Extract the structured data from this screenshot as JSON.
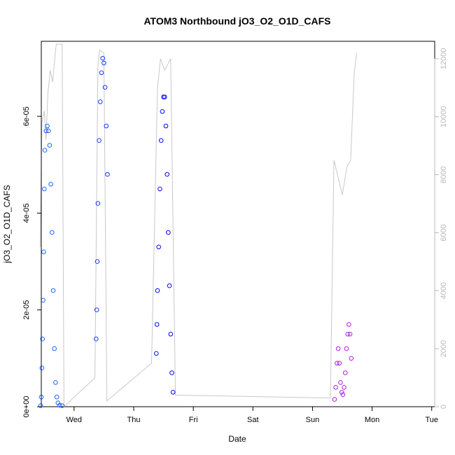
{
  "chart_data": {
    "type": "scatter",
    "title": "ATOM3 Northbound jO3_O2_O1D_CAFS",
    "xlabel": "Date",
    "ylabel": "jO3_O2_O1D_CAFS",
    "x_ticks": [
      "Wed",
      "Thu",
      "Fri",
      "Sat",
      "Sun",
      "Mon",
      "Tue"
    ],
    "y_ticks": [
      "0e+00",
      "2e-05",
      "4e-05",
      "6e-05"
    ],
    "y_tick_values": [
      0,
      2e-05,
      4e-05,
      6e-05
    ],
    "ylim": [
      0,
      7.55e-05
    ],
    "y2_ticks": [
      "0",
      "2000",
      "4000",
      "6000",
      "8000",
      "10000",
      "12000"
    ],
    "y2_tick_values": [
      0,
      2000,
      4000,
      6000,
      8000,
      10000,
      12000
    ],
    "y2lim": [
      0,
      12600
    ],
    "xlim_days": [
      -0.55,
      6.05
    ],
    "grid": false,
    "point_style": "open-circle",
    "point_color_gradient": [
      "#1e6eff",
      "#0000ee",
      "#8a2be2",
      "#ff00ff"
    ],
    "secondary_line_color": "#c8c8c8",
    "series": [
      {
        "segment": 1,
        "day_range": [
          -0.56,
          -0.17
        ],
        "points": [
          [
            -0.56,
            2e-07
          ],
          [
            -0.55,
            2e-06
          ],
          [
            -0.54,
            8e-06
          ],
          [
            -0.53,
            1.4e-05
          ],
          [
            -0.52,
            2.2e-05
          ],
          [
            -0.51,
            3.2e-05
          ],
          [
            -0.5,
            4.5e-05
          ],
          [
            -0.49,
            5.3e-05
          ],
          [
            -0.47,
            5.7e-05
          ],
          [
            -0.45,
            5.8e-05
          ],
          [
            -0.43,
            5.7e-05
          ],
          [
            -0.41,
            5.4e-05
          ],
          [
            -0.39,
            4.6e-05
          ],
          [
            -0.37,
            3.6e-05
          ],
          [
            -0.35,
            2.4e-05
          ],
          [
            -0.33,
            1.2e-05
          ],
          [
            -0.31,
            5e-06
          ],
          [
            -0.29,
            2e-06
          ],
          [
            -0.27,
            8e-07
          ],
          [
            -0.24,
            3e-07
          ],
          [
            -0.2,
            2e-07
          ]
        ]
      },
      {
        "segment": 2,
        "day_range": [
          0.37,
          0.57
        ],
        "points": [
          [
            0.37,
            1.4e-05
          ],
          [
            0.38,
            2e-05
          ],
          [
            0.39,
            3e-05
          ],
          [
            0.4,
            4.2e-05
          ],
          [
            0.42,
            5.5e-05
          ],
          [
            0.44,
            6.3e-05
          ],
          [
            0.46,
            6.9e-05
          ],
          [
            0.48,
            7.2e-05
          ],
          [
            0.5,
            7.1e-05
          ],
          [
            0.52,
            6.6e-05
          ],
          [
            0.54,
            5.8e-05
          ],
          [
            0.56,
            4.8e-05
          ]
        ]
      },
      {
        "segment": 3,
        "day_range": [
          1.38,
          1.7
        ],
        "points": [
          [
            1.38,
            1.1e-05
          ],
          [
            1.39,
            1.7e-05
          ],
          [
            1.4,
            2.4e-05
          ],
          [
            1.42,
            3.3e-05
          ],
          [
            1.44,
            4.5e-05
          ],
          [
            1.46,
            5.5e-05
          ],
          [
            1.48,
            6.1e-05
          ],
          [
            1.5,
            6.4e-05
          ],
          [
            1.52,
            6.4e-05
          ],
          [
            1.54,
            5.8e-05
          ],
          [
            1.56,
            4.8e-05
          ],
          [
            1.58,
            3.6e-05
          ],
          [
            1.6,
            2.5e-05
          ],
          [
            1.62,
            1.5e-05
          ],
          [
            1.64,
            7e-06
          ],
          [
            1.66,
            3e-06
          ]
        ]
      },
      {
        "segment": 4,
        "day_range": [
          4.37,
          4.73
        ],
        "points": [
          [
            4.37,
            1.5e-06
          ],
          [
            4.39,
            4e-06
          ],
          [
            4.41,
            9e-06
          ],
          [
            4.43,
            1.2e-05
          ],
          [
            4.45,
            9e-06
          ],
          [
            4.47,
            5e-06
          ],
          [
            4.49,
            3e-06
          ],
          [
            4.51,
            2.5e-06
          ],
          [
            4.53,
            4e-06
          ],
          [
            4.55,
            7e-06
          ],
          [
            4.57,
            1.2e-05
          ],
          [
            4.59,
            1.5e-05
          ],
          [
            4.61,
            1.7e-05
          ],
          [
            4.63,
            1.5e-05
          ],
          [
            4.65,
            1e-05
          ]
        ]
      }
    ],
    "secondary_series": [
      [
        -0.57,
        5500
      ],
      [
        -0.54,
        9800
      ],
      [
        -0.5,
        10200
      ],
      [
        -0.47,
        9200
      ],
      [
        -0.44,
        10800
      ],
      [
        -0.4,
        11600
      ],
      [
        -0.36,
        11200
      ],
      [
        -0.3,
        12500
      ],
      [
        -0.2,
        12500
      ],
      [
        -0.17,
        0
      ],
      [
        0.35,
        1000
      ],
      [
        0.4,
        11800
      ],
      [
        0.43,
        12300
      ],
      [
        0.5,
        12200
      ],
      [
        0.55,
        200
      ],
      [
        1.3,
        1500
      ],
      [
        1.4,
        11000
      ],
      [
        1.45,
        12000
      ],
      [
        1.52,
        11600
      ],
      [
        1.62,
        12000
      ],
      [
        1.7,
        400
      ],
      [
        4.3,
        300
      ],
      [
        4.36,
        8500
      ],
      [
        4.42,
        8000
      ],
      [
        4.5,
        7300
      ],
      [
        4.58,
        8300
      ],
      [
        4.64,
        8500
      ],
      [
        4.7,
        11500
      ],
      [
        4.74,
        12200
      ]
    ]
  }
}
